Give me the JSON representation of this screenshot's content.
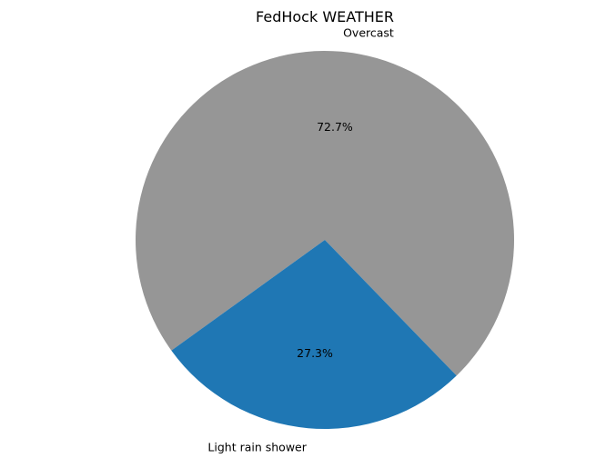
{
  "chart_data": {
    "type": "pie",
    "title": "FedHock WEATHER",
    "slices": [
      {
        "label": "Overcast",
        "value": 72.7,
        "pct_label": "72.7%",
        "color": "#969696"
      },
      {
        "label": "Light rain shower",
        "value": 27.3,
        "pct_label": "27.3%",
        "color": "#1f77b4"
      }
    ],
    "start_angle_deg": 314.1,
    "direction": "counterclockwise"
  }
}
